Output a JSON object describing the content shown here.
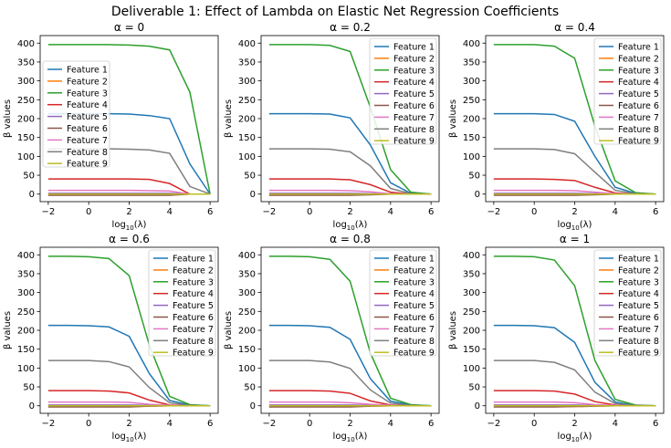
{
  "figure": {
    "title": "Deliverable 1: Effect of Lambda on Elastic Net Regression Coefficients"
  },
  "legend_labels": [
    "Feature 1",
    "Feature 2",
    "Feature 3",
    "Feature 4",
    "Feature 5",
    "Feature 6",
    "Feature 7",
    "Feature 8",
    "Feature 9"
  ],
  "colors": [
    "#1f77b4",
    "#ff7f0e",
    "#2ca02c",
    "#d62728",
    "#9467bd",
    "#8c564b",
    "#e377c2",
    "#7f7f7f",
    "#bcbd22"
  ],
  "chart_data": [
    {
      "type": "line",
      "title": "α = 0",
      "xlabel": "log10(λ)",
      "ylabel": "β values",
      "xlim": [
        -2.4,
        6.4
      ],
      "ylim": [
        -20,
        420
      ],
      "xticks": [
        -2,
        0,
        2,
        4,
        6
      ],
      "yticks": [
        0,
        50,
        100,
        150,
        200,
        250,
        300,
        350,
        400
      ],
      "grid": false,
      "legend": "center-left",
      "x": [
        -2,
        -1,
        0,
        1,
        2,
        3,
        4,
        5,
        6
      ],
      "series": [
        {
          "name": "Feature 1",
          "values": [
            213,
            213,
            213,
            213,
            212,
            208,
            200,
            80,
            0
          ]
        },
        {
          "name": "Feature 2",
          "values": [
            -2,
            -2,
            -2,
            -2,
            -2,
            -2,
            -2,
            0,
            0
          ]
        },
        {
          "name": "Feature 3",
          "values": [
            396,
            396,
            396,
            396,
            395,
            392,
            382,
            270,
            0
          ]
        },
        {
          "name": "Feature 4",
          "values": [
            40,
            40,
            40,
            40,
            40,
            39,
            28,
            0,
            0
          ]
        },
        {
          "name": "Feature 5",
          "values": [
            2,
            2,
            2,
            2,
            2,
            2,
            2,
            0,
            0
          ]
        },
        {
          "name": "Feature 6",
          "values": [
            -3,
            -3,
            -3,
            -3,
            -3,
            -3,
            -3,
            0,
            0
          ]
        },
        {
          "name": "Feature 7",
          "values": [
            10,
            10,
            10,
            10,
            10,
            9,
            8,
            0,
            0
          ]
        },
        {
          "name": "Feature 8",
          "values": [
            120,
            120,
            120,
            120,
            119,
            117,
            108,
            20,
            0
          ]
        },
        {
          "name": "Feature 9",
          "values": [
            0,
            0,
            0,
            0,
            0,
            0,
            0,
            0,
            0
          ]
        }
      ]
    },
    {
      "type": "line",
      "title": "α = 0.2",
      "xlabel": "log10(λ)",
      "ylabel": "β values",
      "xlim": [
        -2.4,
        6.4
      ],
      "ylim": [
        -20,
        420
      ],
      "xticks": [
        -2,
        0,
        2,
        4,
        6
      ],
      "yticks": [
        0,
        50,
        100,
        150,
        200,
        250,
        300,
        350,
        400
      ],
      "grid": false,
      "legend": "upper-right",
      "x": [
        -2,
        -1,
        0,
        1,
        2,
        3,
        4,
        5,
        6
      ],
      "series": [
        {
          "name": "Feature 1",
          "values": [
            213,
            213,
            213,
            212,
            202,
            130,
            30,
            2,
            0
          ]
        },
        {
          "name": "Feature 2",
          "values": [
            -2,
            -2,
            -2,
            -2,
            -2,
            -1,
            0,
            0,
            0
          ]
        },
        {
          "name": "Feature 3",
          "values": [
            396,
            396,
            396,
            394,
            378,
            230,
            65,
            5,
            0
          ]
        },
        {
          "name": "Feature 4",
          "values": [
            40,
            40,
            40,
            40,
            38,
            25,
            5,
            0,
            0
          ]
        },
        {
          "name": "Feature 5",
          "values": [
            2,
            2,
            2,
            2,
            2,
            1,
            0,
            0,
            0
          ]
        },
        {
          "name": "Feature 6",
          "values": [
            -3,
            -3,
            -3,
            -3,
            -3,
            -2,
            0,
            0,
            0
          ]
        },
        {
          "name": "Feature 7",
          "values": [
            10,
            10,
            10,
            10,
            9,
            6,
            1,
            0,
            0
          ]
        },
        {
          "name": "Feature 8",
          "values": [
            120,
            120,
            120,
            119,
            112,
            75,
            15,
            1,
            0
          ]
        },
        {
          "name": "Feature 9",
          "values": [
            0,
            0,
            0,
            0,
            0,
            0,
            0,
            0,
            0
          ]
        }
      ]
    },
    {
      "type": "line",
      "title": "α = 0.4",
      "xlabel": "log10(λ)",
      "ylabel": "β values",
      "xlim": [
        -2.4,
        6.4
      ],
      "ylim": [
        -20,
        420
      ],
      "xticks": [
        -2,
        0,
        2,
        4,
        6
      ],
      "yticks": [
        0,
        50,
        100,
        150,
        200,
        250,
        300,
        350,
        400
      ],
      "grid": false,
      "legend": "upper-right",
      "x": [
        -2,
        -1,
        0,
        1,
        2,
        3,
        4,
        5,
        6
      ],
      "series": [
        {
          "name": "Feature 1",
          "values": [
            213,
            213,
            213,
            211,
            193,
            100,
            18,
            2,
            0
          ]
        },
        {
          "name": "Feature 2",
          "values": [
            -2,
            -2,
            -2,
            -2,
            -2,
            -1,
            0,
            0,
            0
          ]
        },
        {
          "name": "Feature 3",
          "values": [
            396,
            396,
            396,
            392,
            360,
            180,
            35,
            4,
            0
          ]
        },
        {
          "name": "Feature 4",
          "values": [
            40,
            40,
            40,
            39,
            36,
            18,
            3,
            0,
            0
          ]
        },
        {
          "name": "Feature 5",
          "values": [
            2,
            2,
            2,
            2,
            2,
            1,
            0,
            0,
            0
          ]
        },
        {
          "name": "Feature 6",
          "values": [
            -3,
            -3,
            -3,
            -3,
            -3,
            -2,
            0,
            0,
            0
          ]
        },
        {
          "name": "Feature 7",
          "values": [
            10,
            10,
            10,
            10,
            9,
            5,
            1,
            0,
            0
          ]
        },
        {
          "name": "Feature 8",
          "values": [
            120,
            120,
            120,
            118,
            107,
            58,
            10,
            1,
            0
          ]
        },
        {
          "name": "Feature 9",
          "values": [
            0,
            0,
            0,
            0,
            0,
            0,
            0,
            0,
            0
          ]
        }
      ]
    },
    {
      "type": "line",
      "title": "α = 0.6",
      "xlabel": "log10(λ)",
      "ylabel": "β values",
      "xlim": [
        -2.4,
        6.4
      ],
      "ylim": [
        -20,
        420
      ],
      "xticks": [
        -2,
        0,
        2,
        4,
        6
      ],
      "yticks": [
        0,
        50,
        100,
        150,
        200,
        250,
        300,
        350,
        400
      ],
      "grid": false,
      "legend": "upper-right",
      "x": [
        -2,
        -1,
        0,
        1,
        2,
        3,
        4,
        5,
        6
      ],
      "series": [
        {
          "name": "Feature 1",
          "values": [
            213,
            213,
            212,
            209,
            184,
            85,
            14,
            2,
            0
          ]
        },
        {
          "name": "Feature 2",
          "values": [
            -2,
            -2,
            -2,
            -2,
            -2,
            -1,
            0,
            0,
            0
          ]
        },
        {
          "name": "Feature 3",
          "values": [
            396,
            396,
            395,
            390,
            345,
            160,
            25,
            3,
            0
          ]
        },
        {
          "name": "Feature 4",
          "values": [
            40,
            40,
            40,
            39,
            34,
            15,
            2,
            0,
            0
          ]
        },
        {
          "name": "Feature 5",
          "values": [
            2,
            2,
            2,
            2,
            2,
            1,
            0,
            0,
            0
          ]
        },
        {
          "name": "Feature 6",
          "values": [
            -3,
            -3,
            -3,
            -3,
            -3,
            -1,
            0,
            0,
            0
          ]
        },
        {
          "name": "Feature 7",
          "values": [
            10,
            10,
            10,
            10,
            9,
            4,
            1,
            0,
            0
          ]
        },
        {
          "name": "Feature 8",
          "values": [
            120,
            120,
            120,
            117,
            103,
            48,
            8,
            1,
            0
          ]
        },
        {
          "name": "Feature 9",
          "values": [
            0,
            0,
            0,
            0,
            0,
            0,
            0,
            0,
            0
          ]
        }
      ]
    },
    {
      "type": "line",
      "title": "α = 0.8",
      "xlabel": "log10(λ)",
      "ylabel": "β values",
      "xlim": [
        -2.4,
        6.4
      ],
      "ylim": [
        -20,
        420
      ],
      "xticks": [
        -2,
        0,
        2,
        4,
        6
      ],
      "yticks": [
        0,
        50,
        100,
        150,
        200,
        250,
        300,
        350,
        400
      ],
      "grid": false,
      "legend": "upper-right",
      "x": [
        -2,
        -1,
        0,
        1,
        2,
        3,
        4,
        5,
        6
      ],
      "series": [
        {
          "name": "Feature 1",
          "values": [
            213,
            213,
            212,
            208,
            176,
            72,
            12,
            2,
            0
          ]
        },
        {
          "name": "Feature 2",
          "values": [
            -2,
            -2,
            -2,
            -2,
            -2,
            -1,
            0,
            0,
            0
          ]
        },
        {
          "name": "Feature 3",
          "values": [
            396,
            396,
            395,
            388,
            330,
            140,
            20,
            3,
            0
          ]
        },
        {
          "name": "Feature 4",
          "values": [
            40,
            40,
            40,
            39,
            33,
            13,
            2,
            0,
            0
          ]
        },
        {
          "name": "Feature 5",
          "values": [
            2,
            2,
            2,
            2,
            2,
            1,
            0,
            0,
            0
          ]
        },
        {
          "name": "Feature 6",
          "values": [
            -3,
            -3,
            -3,
            -3,
            -3,
            -1,
            0,
            0,
            0
          ]
        },
        {
          "name": "Feature 7",
          "values": [
            10,
            10,
            10,
            10,
            8,
            4,
            1,
            0,
            0
          ]
        },
        {
          "name": "Feature 8",
          "values": [
            120,
            120,
            120,
            116,
            99,
            42,
            7,
            1,
            0
          ]
        },
        {
          "name": "Feature 9",
          "values": [
            0,
            0,
            0,
            0,
            0,
            0,
            0,
            0,
            0
          ]
        }
      ]
    },
    {
      "type": "line",
      "title": "α = 1",
      "xlabel": "log10(λ)",
      "ylabel": "β values",
      "xlim": [
        -2.4,
        6.4
      ],
      "ylim": [
        -20,
        420
      ],
      "xticks": [
        -2,
        0,
        2,
        4,
        6
      ],
      "yticks": [
        0,
        50,
        100,
        150,
        200,
        250,
        300,
        350,
        400
      ],
      "grid": false,
      "legend": "upper-right",
      "x": [
        -2,
        -1,
        0,
        1,
        2,
        3,
        4,
        5,
        6
      ],
      "series": [
        {
          "name": "Feature 1",
          "values": [
            213,
            213,
            212,
            207,
            168,
            62,
            10,
            1,
            0
          ]
        },
        {
          "name": "Feature 2",
          "values": [
            -2,
            -2,
            -2,
            -2,
            -2,
            -1,
            0,
            0,
            0
          ]
        },
        {
          "name": "Feature 3",
          "values": [
            396,
            396,
            395,
            386,
            318,
            120,
            17,
            2,
            0
          ]
        },
        {
          "name": "Feature 4",
          "values": [
            40,
            40,
            40,
            39,
            31,
            11,
            2,
            0,
            0
          ]
        },
        {
          "name": "Feature 5",
          "values": [
            2,
            2,
            2,
            2,
            2,
            1,
            0,
            0,
            0
          ]
        },
        {
          "name": "Feature 6",
          "values": [
            -3,
            -3,
            -3,
            -3,
            -2,
            -1,
            0,
            0,
            0
          ]
        },
        {
          "name": "Feature 7",
          "values": [
            10,
            10,
            10,
            10,
            8,
            3,
            1,
            0,
            0
          ]
        },
        {
          "name": "Feature 8",
          "values": [
            120,
            120,
            120,
            115,
            95,
            36,
            6,
            1,
            0
          ]
        },
        {
          "name": "Feature 9",
          "values": [
            0,
            0,
            0,
            0,
            0,
            0,
            0,
            0,
            0
          ]
        }
      ]
    }
  ]
}
